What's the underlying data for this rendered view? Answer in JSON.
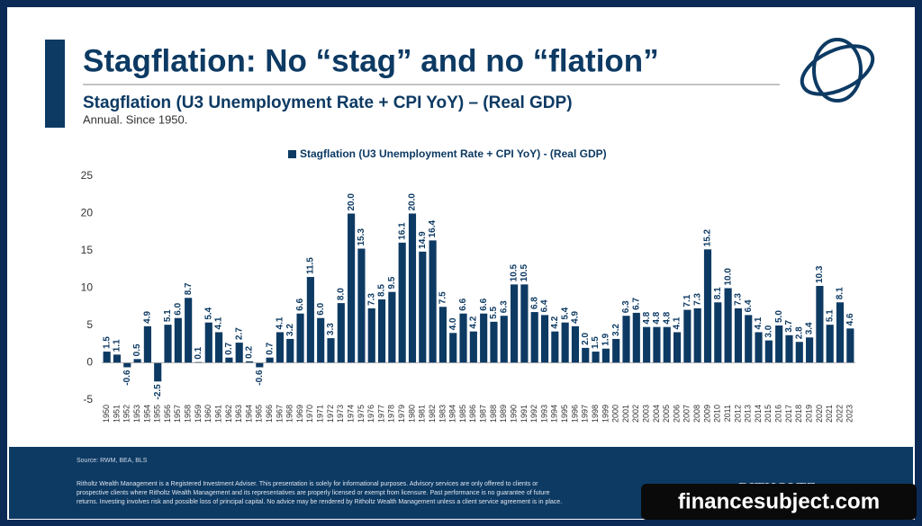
{
  "header": {
    "title": "Stagflation: No “stag” and no “flation”",
    "subtitle": "Stagflation (U3 Unemployment Rate + CPI YoY) – (Real GDP)",
    "note": "Annual. Since 1950."
  },
  "chart_data": {
    "type": "bar",
    "categories": [
      "1950",
      "1951",
      "1952",
      "1953",
      "1954",
      "1955",
      "1956",
      "1957",
      "1958",
      "1959",
      "1960",
      "1961",
      "1962",
      "1963",
      "1964",
      "1965",
      "1966",
      "1967",
      "1968",
      "1969",
      "1970",
      "1971",
      "1972",
      "1973",
      "1974",
      "1975",
      "1976",
      "1977",
      "1978",
      "1979",
      "1980",
      "1981",
      "1982",
      "1983",
      "1984",
      "1985",
      "1986",
      "1987",
      "1988",
      "1989",
      "1990",
      "1991",
      "1992",
      "1993",
      "1994",
      "1995",
      "1996",
      "1997",
      "1998",
      "1999",
      "2000",
      "2001",
      "2002",
      "2003",
      "2004",
      "2005",
      "2006",
      "2007",
      "2008",
      "2009",
      "2010",
      "2011",
      "2012",
      "2013",
      "2014",
      "2015",
      "2016",
      "2017",
      "2018",
      "2019",
      "2020",
      "2021",
      "2022",
      "2023"
    ],
    "series": [
      {
        "name": "Stagflation (U3 Unemployment Rate + CPI YoY) - (Real GDP)",
        "color": "#0d3a63",
        "values": [
          1.5,
          1.1,
          -0.6,
          0.5,
          4.9,
          -2.5,
          5.1,
          6.0,
          8.7,
          0.1,
          5.4,
          4.1,
          0.7,
          2.7,
          0.2,
          -0.6,
          0.7,
          4.1,
          3.2,
          6.6,
          11.5,
          6.0,
          3.3,
          8.0,
          20.0,
          15.3,
          7.3,
          8.5,
          9.5,
          16.1,
          20.0,
          14.9,
          16.4,
          7.5,
          4.0,
          6.6,
          4.2,
          6.6,
          5.5,
          6.3,
          10.5,
          10.5,
          6.8,
          6.4,
          4.2,
          5.4,
          4.9,
          2.0,
          1.5,
          1.9,
          3.2,
          6.3,
          6.7,
          4.8,
          4.8,
          4.8,
          4.1,
          7.1,
          7.3,
          15.2,
          8.1,
          10.0,
          7.3,
          6.4,
          4.1,
          3.0,
          5.0,
          3.7,
          2.8,
          3.4,
          10.3,
          5.1,
          8.1,
          4.6
        ],
        "value_labels": [
          "1.5",
          "1.1",
          "-0.6",
          "0.5",
          "4.9",
          "-2.5",
          "5.1",
          "6.0",
          "8.7",
          "0.1",
          "5.4",
          "4.1",
          "0.7",
          "2.7",
          "0.2",
          "-0.6",
          "0.7",
          "4.1",
          "3.2",
          "6.6",
          "11.5",
          "6.0",
          "3.3",
          "8.0",
          "20.0",
          "15.3",
          "7.3",
          "8.5",
          "9.5",
          "16.1",
          "20.0",
          "14.9",
          "16.4",
          "7.5",
          "4.0",
          "6.6",
          "4.2",
          "6.6",
          "5.5",
          "6.3",
          "10.5",
          "10.5",
          "6.8",
          "6.4",
          "4.2",
          "5.4",
          "4.9",
          "2.0",
          "1.5",
          "1.9",
          "3.2",
          "6.3",
          "6.7",
          "4.8",
          "4.8",
          "4.8",
          "4.1",
          "7.1",
          "7.3",
          "15.2",
          "8.1",
          "10.0",
          "7.3",
          "6.4",
          "4.1",
          "3.0",
          "5.0",
          "3.7",
          "2.8",
          "3.4",
          "10.3",
          "5.1",
          "8.1",
          "4.6"
        ]
      }
    ],
    "ylim": [
      -5,
      25
    ],
    "yticks": [
      -5,
      0,
      5,
      10,
      15,
      20,
      25
    ],
    "grid": false,
    "legend": "top"
  },
  "footer": {
    "source": "Source: RWM, BEA, BLS",
    "disclaimer": [
      "Ritholtz Wealth Management is a Registered Investment Adviser. This presentation is solely for informational purposes. Advisory services are only offered to clients or",
      "prospective clients where Ritholtz Wealth Management and its representatives are properly licensed or exempt from licensure. Past performance is no guarantee of future",
      "returns. Investing involves risk and possible loss of principal capital. No advice may be rendered by Ritholtz Wealth Management unless a client service agreement is in place."
    ],
    "brand": "RITHOLTZ",
    "watermark": "financesubject.com"
  }
}
